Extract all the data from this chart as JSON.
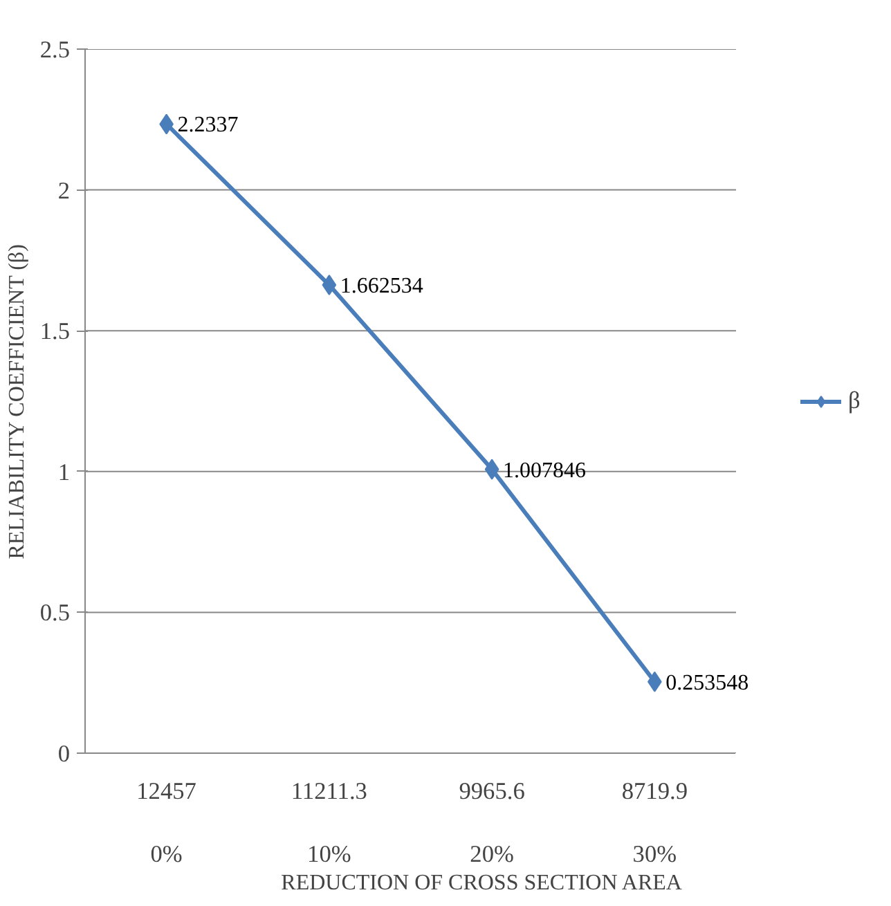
{
  "chart_data": {
    "type": "line",
    "xlabel": "REDUCTION OF CROSS SECTION AREA",
    "ylabel": "RELIABILITY COEFFICIENT (β)",
    "categories": [
      "12457\n\n0%",
      "11211.3\n\n10%",
      "9965.6\n\n20%",
      "8719.9\n\n30%"
    ],
    "series": [
      {
        "name": "β",
        "color": "#4a7ebb",
        "values": [
          2.2337,
          1.662534,
          1.007846,
          0.253548
        ]
      }
    ],
    "ylim": [
      0,
      2.5
    ],
    "yticks": [
      0,
      0.5,
      1,
      1.5,
      2,
      2.5
    ],
    "grid": "y",
    "legend": "right",
    "marker": "diamond",
    "line_style": "solid",
    "data_labels": true
  }
}
